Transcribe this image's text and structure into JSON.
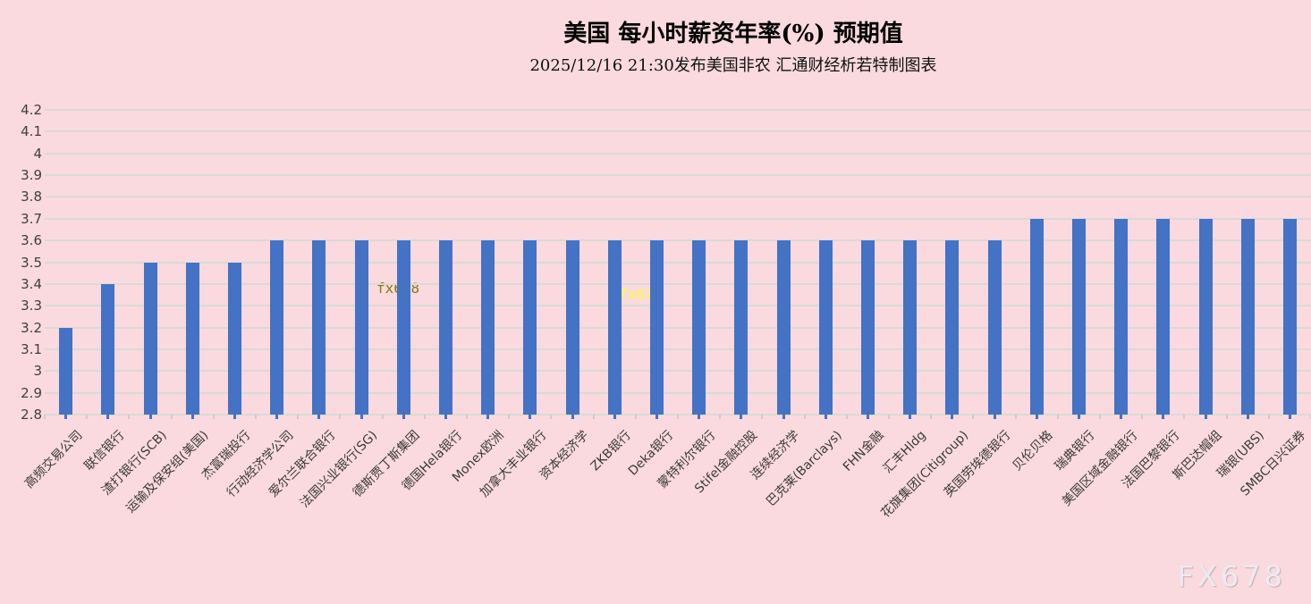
{
  "header": {
    "title": "美国 每小时薪资年率(%) 预期值",
    "subtitle": "2025/12/16 21:30发布美国非农 汇通财经析若特制图表"
  },
  "chart_data": {
    "type": "bar",
    "title": "美国 每小时薪资年率(%) 预期值",
    "subtitle": "2025/12/16 21:30发布美国非农 汇通财经析若特制图表",
    "categories": [
      "高频交易公司",
      "联信银行",
      "渣打银行(SCB)",
      "运输及保安组(美国)",
      "杰富瑞投行",
      "行动经济学公司",
      "爱尔兰联合银行",
      "法国兴业银行(SG)",
      "德斯贾丁斯集团",
      "德国Hela银行",
      "Monex欧洲",
      "加拿大丰业银行",
      "资本经济学",
      "ZKB银行",
      "Deka银行",
      "蒙特利尔银行",
      "Stifel金融控股",
      "连续经济学",
      "巴克莱(Barclays)",
      "FHN金融",
      "汇丰Hldg",
      "花旗集团(Citigroup)",
      "英国劳埃德银行",
      "贝伦贝格",
      "瑞典银行",
      "美国区域金融银行",
      "法国巴黎银行",
      "斯巴达帽组",
      "瑞银(UBS)",
      "SMBC日兴证券"
    ],
    "values": [
      3.2,
      3.4,
      3.5,
      3.5,
      3.5,
      3.6,
      3.6,
      3.6,
      3.6,
      3.6,
      3.6,
      3.6,
      3.6,
      3.6,
      3.6,
      3.6,
      3.6,
      3.6,
      3.6,
      3.6,
      3.6,
      3.6,
      3.6,
      3.7,
      3.7,
      3.7,
      3.7,
      3.7,
      3.7,
      3.7
    ],
    "xlabel": "",
    "ylabel": "",
    "ylim": [
      2.8,
      4.2
    ],
    "ytick_labels": [
      "4.2",
      "4.1",
      "4",
      "3.9",
      "3.8",
      "3.7",
      "3.6",
      "3.5",
      "3.4",
      "3.3",
      "3.2",
      "3.1",
      "3",
      "2.9",
      "2.8"
    ],
    "grid": true,
    "legend": false,
    "bar_color": "#4472C4",
    "background_color": "#FADADE",
    "gridline_color": "#D9D9D9"
  },
  "watermarks": {
    "inline_left": "fx678",
    "inline_mid": "fx678",
    "corner": "FX678"
  }
}
